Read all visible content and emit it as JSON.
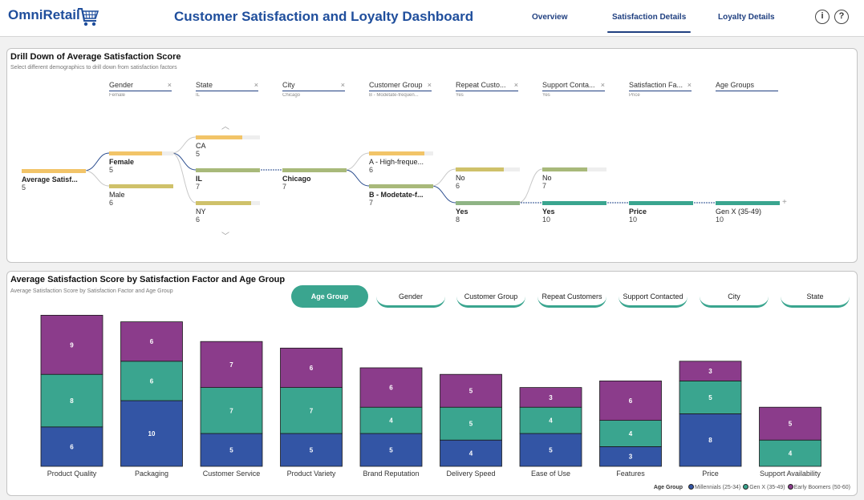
{
  "header": {
    "brand": "OmniRetail",
    "title": "Customer Satisfaction and Loyalty Dashboard",
    "nav": [
      {
        "label": "Overview",
        "active": false
      },
      {
        "label": "Satisfaction Details",
        "active": true
      },
      {
        "label": "Loyalty Details",
        "active": false
      }
    ],
    "info_label": "i",
    "help_label": "?"
  },
  "drill": {
    "title": "Drill Down of Average Satisfaction Score",
    "subtitle": "Select different demographics to drill down from satisfaction factors",
    "levels": [
      {
        "name": "Gender",
        "value": "Female"
      },
      {
        "name": "State",
        "value": "IL"
      },
      {
        "name": "City",
        "value": "Chicago"
      },
      {
        "name": "Customer Group",
        "value": "B - Modetate-frequen..."
      },
      {
        "name": "Repeat Custo...",
        "value": "Yes"
      },
      {
        "name": "Support Conta...",
        "value": "Yes"
      },
      {
        "name": "Satisfaction Fa...",
        "value": "Price"
      },
      {
        "name": "Age Groups",
        "value": ""
      }
    ],
    "nodes": {
      "root": {
        "label": "Average Satisf...",
        "value": "5",
        "fill": 100
      },
      "female": {
        "label": "Female",
        "value": "5",
        "fill": 82
      },
      "male": {
        "label": "Male",
        "value": "6",
        "fill": 100
      },
      "ca": {
        "label": "CA",
        "value": "5",
        "fill": 72
      },
      "il": {
        "label": "IL",
        "value": "7",
        "fill": 100
      },
      "ny": {
        "label": "NY",
        "value": "6",
        "fill": 86
      },
      "chicago": {
        "label": "Chicago",
        "value": "7",
        "fill": 100
      },
      "grp_a": {
        "label": "A - High-freque...",
        "value": "6",
        "fill": 86
      },
      "grp_b": {
        "label": "B - Modetate-f...",
        "value": "7",
        "fill": 100
      },
      "rep_no": {
        "label": "No",
        "value": "6",
        "fill": 75
      },
      "rep_yes": {
        "label": "Yes",
        "value": "8",
        "fill": 100
      },
      "sup_no": {
        "label": "No",
        "value": "7",
        "fill": 70
      },
      "sup_yes": {
        "label": "Yes",
        "value": "10",
        "fill": 100
      },
      "price": {
        "label": "Price",
        "value": "10",
        "fill": 100
      },
      "genx": {
        "label": "Gen X (35-49)",
        "value": "10",
        "fill": 100
      }
    },
    "expand_label": "+"
  },
  "bars": {
    "title": "Average Satisfaction Score by Satisfaction Factor and Age Group",
    "subtitle": "Average Satisfaction Score by Satisfaction Factor and Age Group",
    "chips": [
      {
        "label": "Age Group",
        "active": true
      },
      {
        "label": "Gender",
        "active": false
      },
      {
        "label": "Customer Group",
        "active": false
      },
      {
        "label": "Repeat Customers",
        "active": false
      },
      {
        "label": "Support Contacted",
        "active": false
      },
      {
        "label": "City",
        "active": false
      },
      {
        "label": "State",
        "active": false
      }
    ],
    "legend_title": "Age Group"
  },
  "colors": {
    "brand": "#1f4e9c",
    "teal": "#3aa58f",
    "millennials": "#3355a5",
    "genx": "#3aa58f",
    "boomers": "#8b3c8b",
    "bar_yellow": "#f2c468",
    "bar_green": "#a8b97a",
    "bar_olive": "#cfc16a",
    "bar_teal": "#3aa58f"
  },
  "chart_data": {
    "type": "bar",
    "stacked": true,
    "title": "Average Satisfaction Score by Satisfaction Factor and Age Group",
    "categories": [
      "Product Quality",
      "Packaging",
      "Customer Service",
      "Product Variety",
      "Brand Reputation",
      "Delivery Speed",
      "Ease of Use",
      "Features",
      "Price",
      "Support Availability"
    ],
    "series": [
      {
        "name": "Millennials (25-34)",
        "values": [
          6,
          10,
          5,
          5,
          5,
          4,
          5,
          3,
          8,
          null
        ],
        "color": "#3355a5"
      },
      {
        "name": "Gen X (35-49)",
        "values": [
          8,
          6,
          7,
          7,
          4,
          5,
          4,
          4,
          5,
          4
        ],
        "color": "#3aa58f"
      },
      {
        "name": "Early Boomers (50-60)",
        "values": [
          9,
          6,
          7,
          6,
          6,
          5,
          3,
          6,
          3,
          5
        ],
        "color": "#8b3c8b"
      }
    ],
    "legend": "bottom-right",
    "grid": false
  }
}
